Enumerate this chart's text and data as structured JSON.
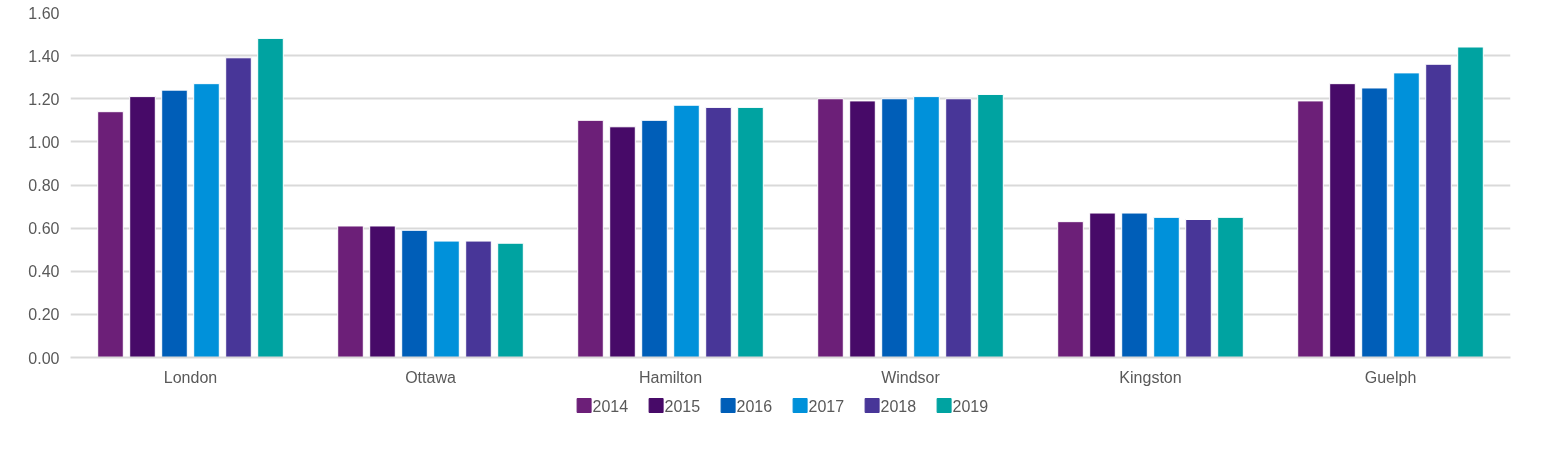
{
  "chart_data": {
    "type": "bar",
    "categories": [
      "London",
      "Ottawa",
      "Hamilton",
      "Windsor",
      "Kingston",
      "Guelph"
    ],
    "series": [
      {
        "name": "2014",
        "color": "#6c1f78",
        "values": [
          1.14,
          0.61,
          1.1,
          1.2,
          0.63,
          1.19
        ]
      },
      {
        "name": "2015",
        "color": "#470a68",
        "values": [
          1.21,
          0.61,
          1.07,
          1.19,
          0.67,
          1.27
        ]
      },
      {
        "name": "2016",
        "color": "#005eb8",
        "values": [
          1.24,
          0.59,
          1.1,
          1.2,
          0.67,
          1.25
        ]
      },
      {
        "name": "2017",
        "color": "#0091da",
        "values": [
          1.27,
          0.54,
          1.17,
          1.21,
          0.65,
          1.32
        ]
      },
      {
        "name": "2018",
        "color": "#483698",
        "values": [
          1.39,
          0.54,
          1.16,
          1.2,
          0.64,
          1.36
        ]
      },
      {
        "name": "2019",
        "color": "#00a3a1",
        "values": [
          1.48,
          0.53,
          1.16,
          1.22,
          0.65,
          1.44
        ]
      }
    ],
    "ylim": [
      0,
      1.6
    ],
    "yticks": [
      {
        "value": 0,
        "label": "0.00"
      },
      {
        "value": 0.2,
        "label": "0.20"
      },
      {
        "value": 0.4,
        "label": "0.40"
      },
      {
        "value": 0.6,
        "label": "0.60"
      },
      {
        "value": 0.8,
        "label": "0.80"
      },
      {
        "value": 1.0,
        "label": "1.00"
      },
      {
        "value": 1.2,
        "label": "1.20"
      },
      {
        "value": 1.4,
        "label": "1.40"
      },
      {
        "value": 1.6,
        "label": "1.60"
      }
    ],
    "grid": "y",
    "legend": "bottom"
  }
}
